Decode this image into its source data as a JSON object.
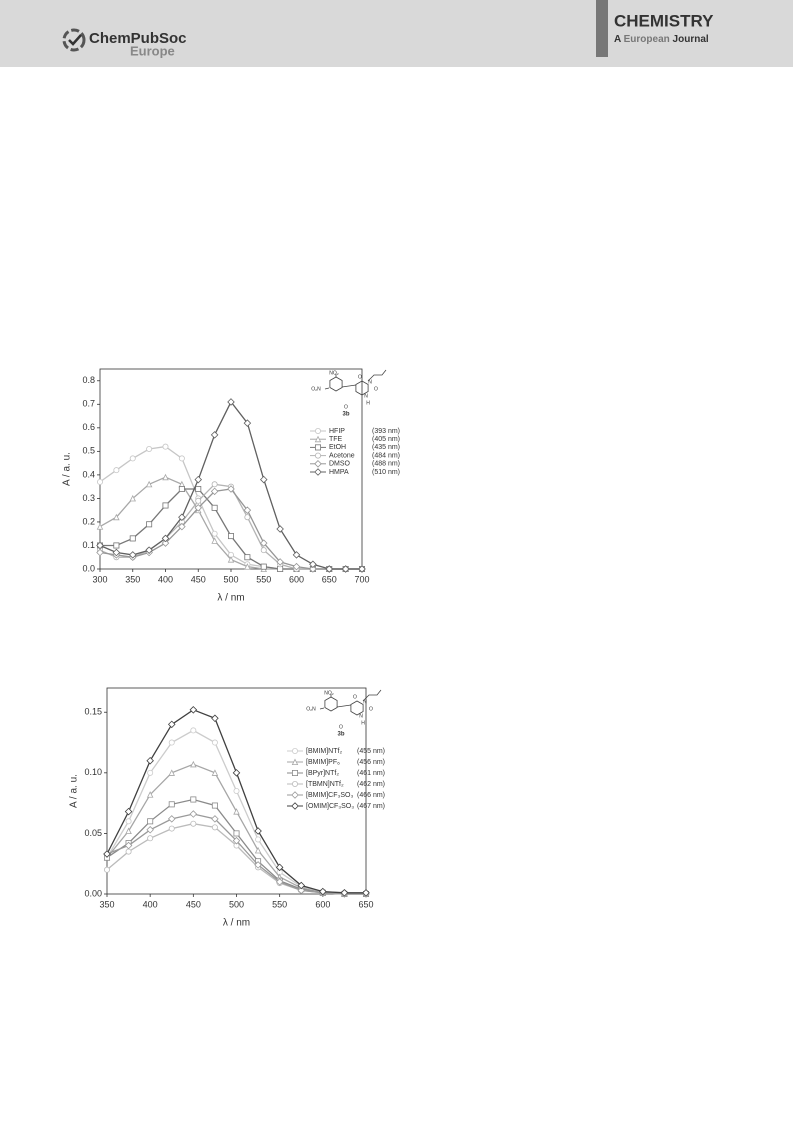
{
  "header": {
    "publisher": "ChemPubSoc",
    "publisher_sub": "Europe",
    "journal": "CHEMISTRY",
    "journal_sub_a": "A",
    "journal_sub_b": "European",
    "journal_sub_c": "Journal"
  },
  "chart_data": [
    {
      "type": "line",
      "xlabel": "λ / nm",
      "ylabel": "A / a. u.",
      "structure_label": "3b",
      "structure_atoms": [
        "O₂N",
        "NO₂",
        "O",
        "N",
        "O",
        "N",
        "H",
        "O"
      ],
      "x": [
        300,
        325,
        350,
        375,
        400,
        425,
        450,
        475,
        500,
        525,
        550,
        575,
        600,
        625,
        650,
        675,
        700
      ],
      "xlim": [
        300,
        700
      ],
      "xticks": [
        300,
        350,
        400,
        450,
        500,
        550,
        600,
        650,
        700
      ],
      "ylim": [
        0,
        0.85
      ],
      "yticks": [
        {
          "value": 0,
          "label": "0.0"
        },
        0.1,
        0.2,
        0.3,
        0.4,
        0.5,
        0.6,
        0.7,
        0.8
      ],
      "series": [
        {
          "name": "HFIP",
          "note": "(393 nm)",
          "color": "#c6c6c6",
          "values": [
            0.37,
            0.42,
            0.47,
            0.51,
            0.52,
            0.47,
            0.3,
            0.15,
            0.06,
            0.02,
            0.01,
            0,
            0,
            0,
            0,
            0,
            0
          ]
        },
        {
          "name": "TFE",
          "note": "(405 nm)",
          "color": "#a8a8a8",
          "values": [
            0.18,
            0.22,
            0.3,
            0.36,
            0.39,
            0.36,
            0.25,
            0.12,
            0.04,
            0.01,
            0,
            0,
            0,
            0,
            0,
            0,
            0
          ]
        },
        {
          "name": "EtOH",
          "note": "(435 nm)",
          "color": "#777777",
          "values": [
            0.1,
            0.1,
            0.13,
            0.19,
            0.27,
            0.34,
            0.34,
            0.26,
            0.14,
            0.05,
            0.01,
            0,
            0,
            0,
            0,
            0,
            0
          ]
        },
        {
          "name": "Acetone",
          "note": "(484 nm)",
          "color": "#b4b4b4",
          "values": [
            0.08,
            0.05,
            0.05,
            0.08,
            0.13,
            0.2,
            0.29,
            0.36,
            0.35,
            0.22,
            0.08,
            0.02,
            0,
            0,
            0,
            0,
            0
          ]
        },
        {
          "name": "DMSO",
          "note": "(488 nm)",
          "color": "#969696",
          "values": [
            0.07,
            0.06,
            0.05,
            0.07,
            0.11,
            0.18,
            0.26,
            0.33,
            0.34,
            0.25,
            0.11,
            0.03,
            0.01,
            0,
            0,
            0,
            0
          ]
        },
        {
          "name": "HMPA",
          "note": "(510 nm)",
          "color": "#606060",
          "values": [
            0.1,
            0.07,
            0.06,
            0.08,
            0.13,
            0.22,
            0.38,
            0.57,
            0.71,
            0.62,
            0.38,
            0.17,
            0.06,
            0.02,
            0,
            0,
            0
          ]
        }
      ]
    },
    {
      "type": "line",
      "xlabel": "λ / nm",
      "ylabel": "A / a. u.",
      "structure_label": "3b",
      "structure_atoms": [
        "O₂N",
        "NO₂",
        "O",
        "N",
        "O",
        "N",
        "H",
        "O"
      ],
      "x": [
        350,
        375,
        400,
        425,
        450,
        475,
        500,
        525,
        550,
        575,
        600,
        625,
        650
      ],
      "xlim": [
        350,
        650
      ],
      "xticks": [
        350,
        400,
        450,
        500,
        550,
        600,
        650
      ],
      "ylim": [
        0,
        0.17
      ],
      "yticks": [
        {
          "value": 0,
          "label": "0.00"
        },
        0.05,
        {
          "value": 0.1,
          "label": "0.10"
        },
        0.15
      ],
      "series": [
        {
          "name": "[BMIM]NTf₂",
          "note": "(455 nm)",
          "color": "#cccccc",
          "values": [
            0.03,
            0.06,
            0.1,
            0.125,
            0.135,
            0.125,
            0.085,
            0.045,
            0.018,
            0.006,
            0.002,
            0.001,
            0
          ]
        },
        {
          "name": "[BMIM]PF₆",
          "note": "(456 nm)",
          "color": "#a6a6a6",
          "values": [
            0.03,
            0.052,
            0.082,
            0.1,
            0.107,
            0.1,
            0.068,
            0.036,
            0.014,
            0.005,
            0.001,
            0,
            0
          ]
        },
        {
          "name": "[BPyr]NTf₂",
          "note": "(461 nm)",
          "color": "#8a8a8a",
          "values": [
            0.03,
            0.042,
            0.06,
            0.074,
            0.078,
            0.073,
            0.05,
            0.027,
            0.011,
            0.004,
            0.001,
            0,
            0
          ]
        },
        {
          "name": "[TBMN]NTf₂",
          "note": "(462 nm)",
          "color": "#bbbbbb",
          "values": [
            0.02,
            0.035,
            0.046,
            0.054,
            0.058,
            0.055,
            0.04,
            0.022,
            0.009,
            0.003,
            0.001,
            0,
            0
          ]
        },
        {
          "name": "[BMIM]CF₃SO₃",
          "note": "(466 nm)",
          "color": "#9a9a9a",
          "values": [
            0.033,
            0.04,
            0.053,
            0.062,
            0.066,
            0.062,
            0.044,
            0.024,
            0.01,
            0.003,
            0.001,
            0,
            0
          ]
        },
        {
          "name": "[OMIM]CF₃SO₃",
          "note": "(467 nm)",
          "color": "#404040",
          "values": [
            0.033,
            0.068,
            0.11,
            0.14,
            0.152,
            0.145,
            0.1,
            0.052,
            0.022,
            0.007,
            0.002,
            0.001,
            0.001
          ]
        }
      ]
    }
  ]
}
